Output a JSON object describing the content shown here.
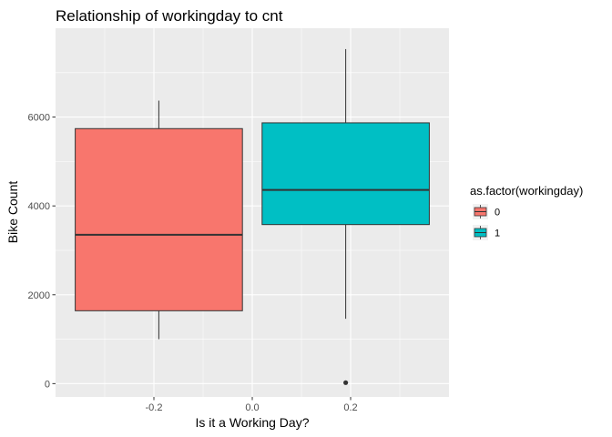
{
  "chart_data": {
    "type": "boxplot",
    "title": "Relationship of workingday to cnt",
    "xlabel": "Is it a Working Day?",
    "ylabel": "Bike Count",
    "xlim": [
      -0.4,
      0.4
    ],
    "ylim": [
      -300,
      8000
    ],
    "x_ticks": [
      -0.2,
      0.0,
      0.2
    ],
    "x_tick_labels": [
      "-0.2",
      "0.0",
      "0.2"
    ],
    "y_ticks": [
      0,
      2000,
      4000,
      6000
    ],
    "y_tick_labels": [
      "0",
      "2000",
      "4000",
      "6000"
    ],
    "grid": true,
    "legend": {
      "title": "as.factor(workingday)",
      "position": "right",
      "entries": [
        "0",
        "1"
      ]
    },
    "boxes": [
      {
        "group": "0",
        "x_center": -0.19,
        "x_width": 0.34,
        "color": "#F8766D",
        "min": 1000,
        "q1": 1640,
        "median": 3350,
        "q3": 5740,
        "max": 6370,
        "outliers": []
      },
      {
        "group": "1",
        "x_center": 0.19,
        "x_width": 0.34,
        "color": "#00BFC4",
        "min": 1460,
        "q1": 3580,
        "median": 4360,
        "q3": 5870,
        "max": 7530,
        "outliers": [
          22
        ]
      }
    ]
  }
}
